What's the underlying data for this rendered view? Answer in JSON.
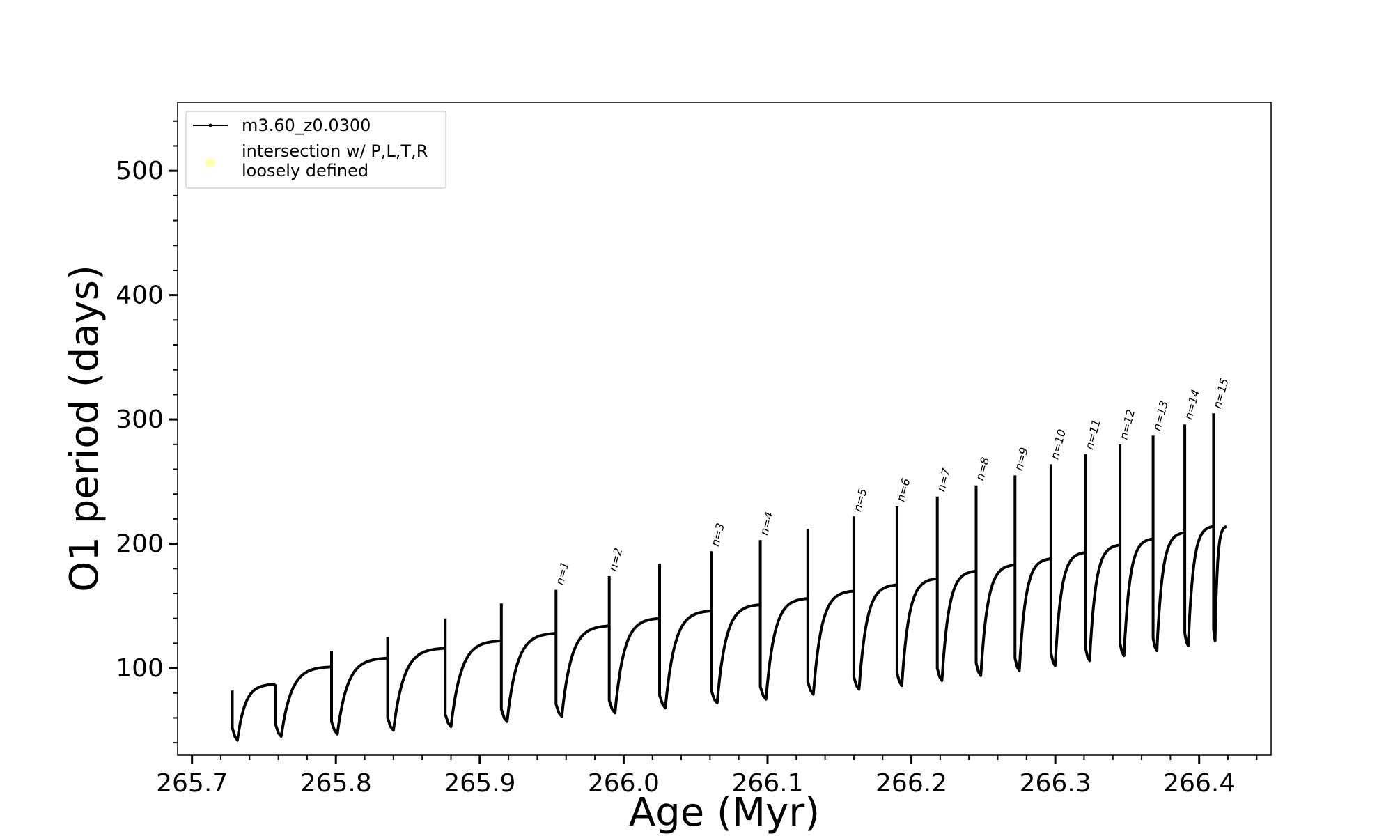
{
  "chart_data": {
    "type": "line",
    "title": "",
    "xlabel": "Age (Myr)",
    "ylabel": "O1 period (days)",
    "xlim": [
      265.69,
      266.45
    ],
    "ylim": [
      30,
      555
    ],
    "x_ticks": [
      265.7,
      265.8,
      265.9,
      266.0,
      266.1,
      266.2,
      266.3,
      266.4
    ],
    "x_tick_labels": [
      "265.7",
      "265.8",
      "265.9",
      "266.0",
      "266.1",
      "266.2",
      "266.3",
      "266.4"
    ],
    "y_ticks": [
      100,
      200,
      300,
      400,
      500
    ],
    "y_tick_labels": [
      "100",
      "200",
      "300",
      "400",
      "500"
    ],
    "grid": false,
    "legend": {
      "placement": "top-left",
      "entries": [
        {
          "label": "m3.60_z0.0300",
          "marker": "line-dot",
          "color": "#000000"
        },
        {
          "label_lines": [
            "intersection w/ P,L,T,R",
            "loosely defined"
          ],
          "marker": "circle",
          "color": "#ffffb3"
        }
      ]
    },
    "series_name": "m3.60_z0.0300",
    "color": "#000000",
    "end_age": 266.419,
    "end_period": 214,
    "pulses": [
      {
        "age": 265.728,
        "peak": 82,
        "low": 42,
        "pre": 0,
        "label": ""
      },
      {
        "age": 265.758,
        "peak": 87,
        "low": 45,
        "pre": 87,
        "label": ""
      },
      {
        "age": 265.797,
        "peak": 114,
        "low": 47,
        "pre": 101,
        "label": ""
      },
      {
        "age": 265.836,
        "peak": 125,
        "low": 50,
        "pre": 108,
        "label": ""
      },
      {
        "age": 265.876,
        "peak": 140,
        "low": 53,
        "pre": 116,
        "label": ""
      },
      {
        "age": 265.915,
        "peak": 152,
        "low": 57,
        "pre": 122,
        "label": ""
      },
      {
        "age": 265.953,
        "peak": 163,
        "low": 61,
        "pre": 128,
        "label": "n=1"
      },
      {
        "age": 265.99,
        "peak": 174,
        "low": 64,
        "pre": 134,
        "label": "n=2"
      },
      {
        "age": 266.025,
        "peak": 184,
        "low": 68,
        "pre": 140,
        "label": ""
      },
      {
        "age": 266.061,
        "peak": 194,
        "low": 72,
        "pre": 146,
        "label": "n=3"
      },
      {
        "age": 266.095,
        "peak": 203,
        "low": 75,
        "pre": 151,
        "label": "n=4"
      },
      {
        "age": 266.128,
        "peak": 212,
        "low": 79,
        "pre": 156,
        "label": ""
      },
      {
        "age": 266.16,
        "peak": 222,
        "low": 83,
        "pre": 162,
        "label": "n=5"
      },
      {
        "age": 266.19,
        "peak": 230,
        "low": 86,
        "pre": 167,
        "label": "n=6"
      },
      {
        "age": 266.218,
        "peak": 238,
        "low": 90,
        "pre": 172,
        "label": "n=7"
      },
      {
        "age": 266.245,
        "peak": 247,
        "low": 94,
        "pre": 178,
        "label": "n=8"
      },
      {
        "age": 266.272,
        "peak": 255,
        "low": 98,
        "pre": 183,
        "label": "n=9"
      },
      {
        "age": 266.297,
        "peak": 264,
        "low": 102,
        "pre": 188,
        "label": "n=10"
      },
      {
        "age": 266.321,
        "peak": 272,
        "low": 106,
        "pre": 193,
        "label": "n=11"
      },
      {
        "age": 266.345,
        "peak": 280,
        "low": 110,
        "pre": 199,
        "label": "n=12"
      },
      {
        "age": 266.368,
        "peak": 287,
        "low": 114,
        "pre": 204,
        "label": "n=13"
      },
      {
        "age": 266.39,
        "peak": 296,
        "low": 118,
        "pre": 209,
        "label": "n=14"
      },
      {
        "age": 266.41,
        "peak": 305,
        "low": 122,
        "pre": 214,
        "label": "n=15"
      }
    ]
  }
}
